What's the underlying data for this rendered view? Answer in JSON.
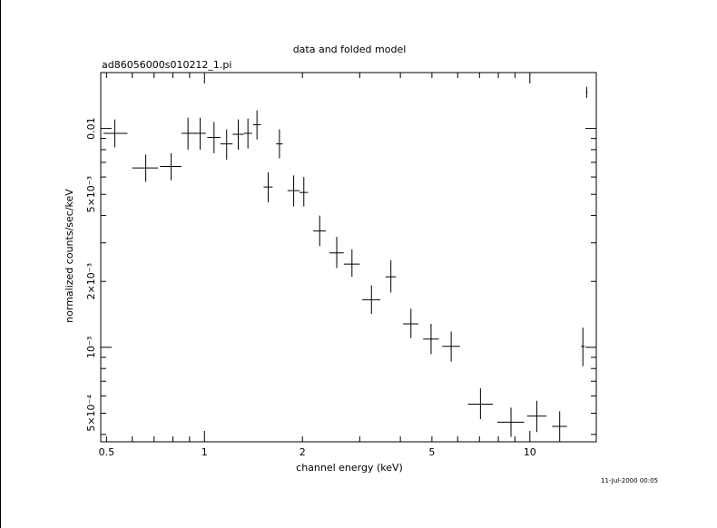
{
  "chart_data": {
    "type": "scatter",
    "title": "data and folded model",
    "subtitle": "ad86056000s010212_1.pi",
    "xlabel": "channel energy (keV)",
    "ylabel": "normalized counts/sec/keV",
    "x_scale": "log",
    "y_scale": "log",
    "xlim": [
      0.48,
      16.0
    ],
    "ylim": [
      0.00037,
      0.018
    ],
    "x_tick_labels": [
      {
        "value": 0.5,
        "label": "0.5"
      },
      {
        "value": 1,
        "label": "1"
      },
      {
        "value": 2,
        "label": "2"
      },
      {
        "value": 5,
        "label": "5"
      },
      {
        "value": 10,
        "label": "10"
      }
    ],
    "y_tick_labels": [
      {
        "value": 0.01,
        "label": "0.01"
      },
      {
        "value": 0.005,
        "label": "5×10⁻³"
      },
      {
        "value": 0.002,
        "label": "2×10⁻³"
      },
      {
        "value": 0.001,
        "label": "10⁻³"
      },
      {
        "value": 0.0005,
        "label": "5×10⁻⁴"
      }
    ],
    "grid": false,
    "timestamp": "11-Jul-2000 00:05",
    "points": [
      {
        "x": 0.53,
        "y": 0.0095,
        "xlo": 0.49,
        "xhi": 0.58,
        "ylo": 0.0082,
        "yhi": 0.011
      },
      {
        "x": 0.66,
        "y": 0.0066,
        "xlo": 0.6,
        "xhi": 0.72,
        "ylo": 0.0057,
        "yhi": 0.0076
      },
      {
        "x": 0.79,
        "y": 0.0067,
        "xlo": 0.73,
        "xhi": 0.85,
        "ylo": 0.0058,
        "yhi": 0.0077
      },
      {
        "x": 0.89,
        "y": 0.0095,
        "xlo": 0.85,
        "xhi": 0.93,
        "ylo": 0.008,
        "yhi": 0.0112
      },
      {
        "x": 0.97,
        "y": 0.0095,
        "xlo": 0.93,
        "xhi": 1.01,
        "ylo": 0.008,
        "yhi": 0.0112
      },
      {
        "x": 1.07,
        "y": 0.0091,
        "xlo": 1.02,
        "xhi": 1.12,
        "ylo": 0.0077,
        "yhi": 0.0107
      },
      {
        "x": 1.17,
        "y": 0.0085,
        "xlo": 1.12,
        "xhi": 1.22,
        "ylo": 0.0072,
        "yhi": 0.0099
      },
      {
        "x": 1.27,
        "y": 0.0094,
        "xlo": 1.22,
        "xhi": 1.32,
        "ylo": 0.008,
        "yhi": 0.011
      },
      {
        "x": 1.36,
        "y": 0.0095,
        "xlo": 1.32,
        "xhi": 1.4,
        "ylo": 0.0081,
        "yhi": 0.0111
      },
      {
        "x": 1.45,
        "y": 0.0104,
        "xlo": 1.41,
        "xhi": 1.49,
        "ylo": 0.0089,
        "yhi": 0.0121
      },
      {
        "x": 1.57,
        "y": 0.0054,
        "xlo": 1.52,
        "xhi": 1.62,
        "ylo": 0.0046,
        "yhi": 0.0063
      },
      {
        "x": 1.7,
        "y": 0.0085,
        "xlo": 1.66,
        "xhi": 1.74,
        "ylo": 0.0073,
        "yhi": 0.0099
      },
      {
        "x": 1.88,
        "y": 0.0052,
        "xlo": 1.8,
        "xhi": 1.96,
        "ylo": 0.0044,
        "yhi": 0.0061
      },
      {
        "x": 2.02,
        "y": 0.0051,
        "xlo": 1.96,
        "xhi": 2.08,
        "ylo": 0.0044,
        "yhi": 0.006
      },
      {
        "x": 2.26,
        "y": 0.0034,
        "xlo": 2.16,
        "xhi": 2.36,
        "ylo": 0.0029,
        "yhi": 0.004
      },
      {
        "x": 2.55,
        "y": 0.0027,
        "xlo": 2.42,
        "xhi": 2.68,
        "ylo": 0.0023,
        "yhi": 0.0032
      },
      {
        "x": 2.84,
        "y": 0.0024,
        "xlo": 2.68,
        "xhi": 3.0,
        "ylo": 0.0021,
        "yhi": 0.0028
      },
      {
        "x": 3.26,
        "y": 0.00165,
        "xlo": 3.05,
        "xhi": 3.47,
        "ylo": 0.00142,
        "yhi": 0.00192
      },
      {
        "x": 3.74,
        "y": 0.0021,
        "xlo": 3.6,
        "xhi": 3.88,
        "ylo": 0.00178,
        "yhi": 0.0025
      },
      {
        "x": 4.31,
        "y": 0.00128,
        "xlo": 4.08,
        "xhi": 4.54,
        "ylo": 0.0011,
        "yhi": 0.0015
      },
      {
        "x": 4.97,
        "y": 0.00109,
        "xlo": 4.7,
        "xhi": 5.25,
        "ylo": 0.00093,
        "yhi": 0.00128
      },
      {
        "x": 5.73,
        "y": 0.00101,
        "xlo": 5.38,
        "xhi": 6.1,
        "ylo": 0.00086,
        "yhi": 0.00118
      },
      {
        "x": 7.05,
        "y": 0.00055,
        "xlo": 6.45,
        "xhi": 7.7,
        "ylo": 0.00047,
        "yhi": 0.00065
      },
      {
        "x": 8.75,
        "y": 0.000455,
        "xlo": 7.95,
        "xhi": 9.6,
        "ylo": 0.00039,
        "yhi": 0.00053
      },
      {
        "x": 10.5,
        "y": 0.000485,
        "xlo": 9.8,
        "xhi": 11.25,
        "ylo": 0.00041,
        "yhi": 0.00057
      },
      {
        "x": 12.35,
        "y": 0.000435,
        "xlo": 11.7,
        "xhi": 13.0,
        "ylo": 0.00037,
        "yhi": 0.00051
      },
      {
        "x": 14.55,
        "y": 0.00101,
        "xlo": 14.37,
        "xhi": 14.73,
        "ylo": 0.00082,
        "yhi": 0.00123
      },
      {
        "x": 14.95,
        "y": 0.0146,
        "xlo": 14.87,
        "xhi": 15.03,
        "ylo": 0.0138,
        "yhi": 0.0155
      }
    ]
  }
}
